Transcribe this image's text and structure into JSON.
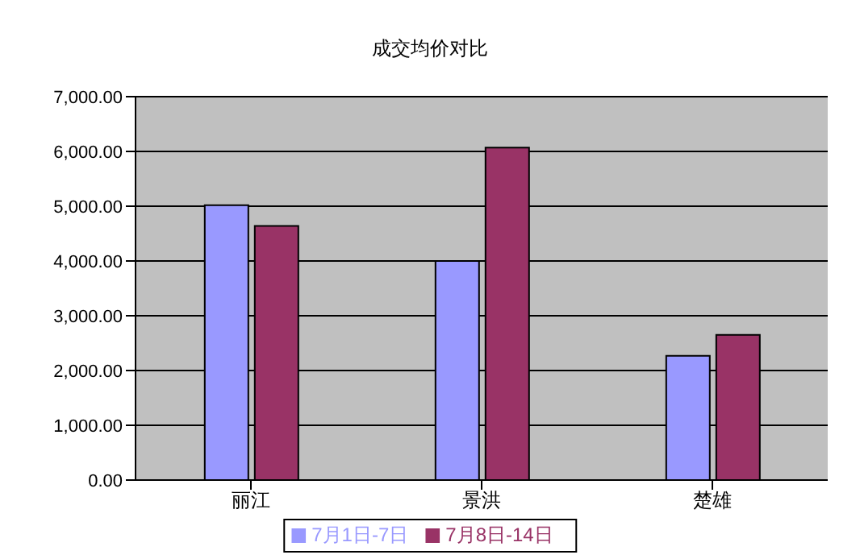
{
  "chart_data": {
    "type": "bar",
    "title": "成交均价对比",
    "categories": [
      "丽江",
      "景洪",
      "楚雄"
    ],
    "series": [
      {
        "name": "7月1日-7日",
        "color": "#9999ff",
        "values": [
          5020,
          4000,
          2270
        ]
      },
      {
        "name": "7月8日-14日",
        "color": "#993366",
        "values": [
          4640,
          6070,
          2650
        ]
      }
    ],
    "ylim": [
      0,
      7000
    ],
    "yticks": [
      {
        "value": 0,
        "label": "0.00"
      },
      {
        "value": 1000,
        "label": "1,000.00"
      },
      {
        "value": 2000,
        "label": "2,000.00"
      },
      {
        "value": 3000,
        "label": "3,000.00"
      },
      {
        "value": 4000,
        "label": "4,000.00"
      },
      {
        "value": 5000,
        "label": "5,000.00"
      },
      {
        "value": 6000,
        "label": "6,000.00"
      },
      {
        "value": 7000,
        "label": "7,000.00"
      }
    ],
    "grid": "y",
    "legend": "bottom"
  }
}
